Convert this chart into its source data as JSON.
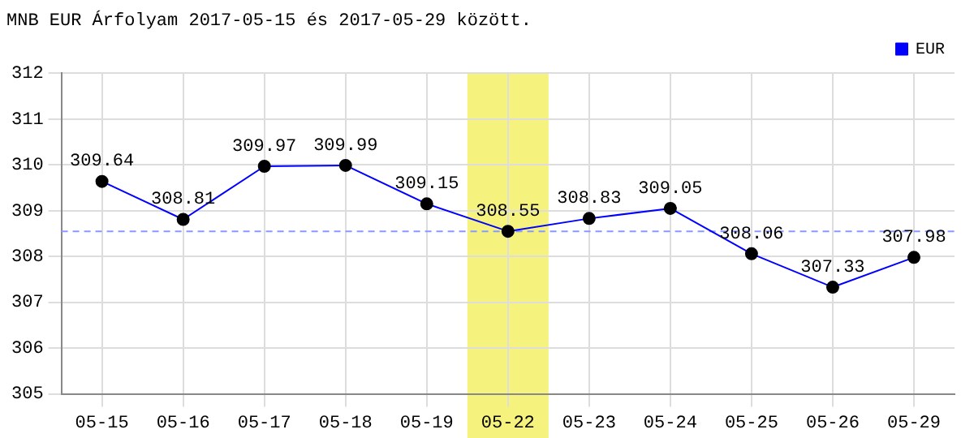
{
  "chart_data": {
    "type": "line",
    "title": "MNB EUR Árfolyam 2017-05-15 és 2017-05-29 között.",
    "categories": [
      "05-15",
      "05-16",
      "05-17",
      "05-18",
      "05-19",
      "05-22",
      "05-23",
      "05-24",
      "05-25",
      "05-26",
      "05-29"
    ],
    "series": [
      {
        "name": "EUR",
        "color": "#0000ff",
        "values": [
          309.64,
          308.81,
          309.97,
          309.99,
          309.15,
          308.55,
          308.83,
          309.05,
          308.06,
          307.33,
          307.98
        ]
      }
    ],
    "ylim": [
      305,
      312
    ],
    "yticks": [
      305,
      306,
      307,
      308,
      309,
      310,
      311,
      312
    ],
    "grid": true,
    "legend": "top right",
    "marker": "circle",
    "line_style": "solid",
    "data_labels": true,
    "ref_lines": [
      {
        "axis": "y",
        "value": 308.55,
        "color": "#8899ff",
        "line_style": "dashed"
      }
    ],
    "bands": [
      {
        "axis": "x",
        "from": "05-22",
        "to": "05-22",
        "color": "#f5f27e"
      }
    ]
  }
}
